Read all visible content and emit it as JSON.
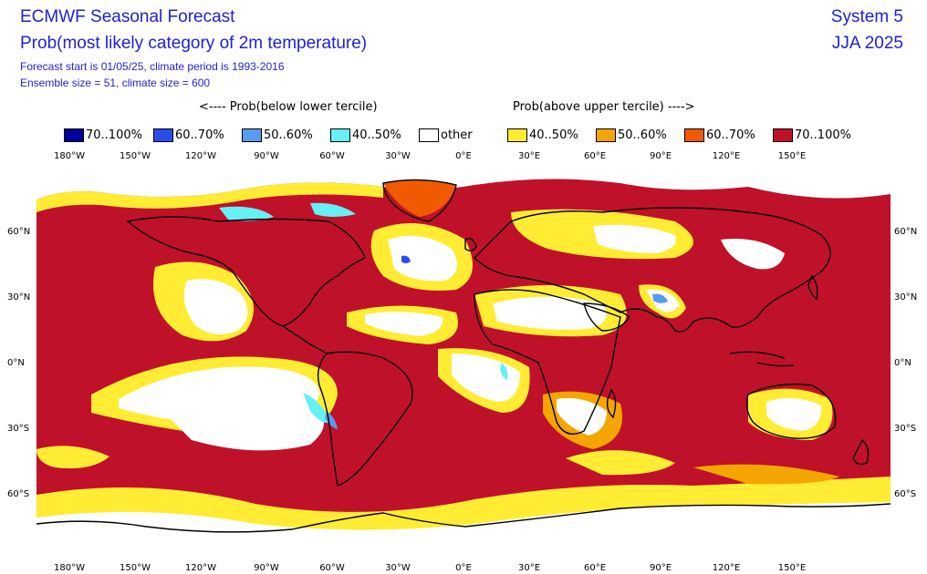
{
  "header": {
    "title": "ECMWF Seasonal Forecast",
    "subtitle": "Prob(most likely category of 2m temperature)",
    "forecast_info": "Forecast start is 01/05/25, climate period is 1993-2016",
    "ensemble_info": "Ensemble size = 51, climate size = 600",
    "system": "System 5",
    "period": "JJA 2025"
  },
  "legend": {
    "below_header": "<---- Prob(below lower tercile)",
    "above_header": "Prob(above upper tercile) ---->",
    "items": [
      {
        "label": "70..100%",
        "color": "#000099"
      },
      {
        "label": "60..70%",
        "color": "#2a4de8"
      },
      {
        "label": "50..60%",
        "color": "#5a9bef"
      },
      {
        "label": "40..50%",
        "color": "#66f0f5"
      },
      {
        "label": "other",
        "color": "#ffffff"
      },
      {
        "label": "40..50%",
        "color": "#ffec33"
      },
      {
        "label": "50..60%",
        "color": "#f5a500"
      },
      {
        "label": "60..70%",
        "color": "#f05a00"
      },
      {
        "label": "70..100%",
        "color": "#c0112b"
      }
    ]
  },
  "axes": {
    "x_ticks": [
      "180°W",
      "150°W",
      "120°W",
      "90°W",
      "60°W",
      "30°W",
      "0°E",
      "30°E",
      "60°E",
      "90°E",
      "120°E",
      "150°E"
    ],
    "y_ticks": [
      "60°N",
      "30°N",
      "0°N",
      "30°S",
      "60°S"
    ],
    "lon_range": [
      -195,
      195
    ],
    "lat_range": [
      90,
      -90
    ]
  },
  "map_colors": {
    "dominant": "#c0112b",
    "white": "#ffffff",
    "yellow": "#ffec33",
    "orange": "#f5a500",
    "dark_orange": "#f05a00",
    "cyan": "#66f0f5",
    "light_blue": "#5a9bef",
    "blue": "#2a4de8",
    "coast": "#000000"
  }
}
